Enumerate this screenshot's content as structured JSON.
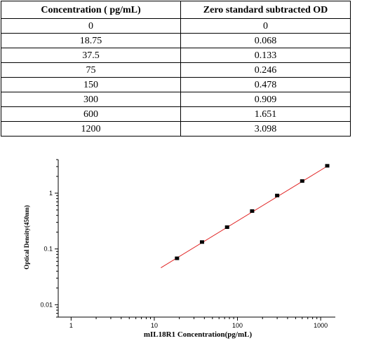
{
  "table": {
    "headers": [
      "Concentration ( pg/mL)",
      "Zero standard subtracted OD"
    ],
    "rows": [
      [
        "0",
        "0"
      ],
      [
        "18.75",
        "0.068"
      ],
      [
        "37.5",
        "0.133"
      ],
      [
        "75",
        "0.246"
      ],
      [
        "150",
        "0.478"
      ],
      [
        "300",
        "0.909"
      ],
      [
        "600",
        "1.651"
      ],
      [
        "1200",
        "3.098"
      ]
    ]
  },
  "chart_data": {
    "type": "scatter",
    "xscale": "log",
    "yscale": "log",
    "xlabel": "mIL18R1 Concentration(pg/mL)",
    "ylabel": "Optical Density(450nm)",
    "xlim": [
      0.7,
      1500
    ],
    "ylim": [
      0.006,
      4
    ],
    "xticks": [
      "1",
      "10",
      "100",
      "1000"
    ],
    "yticks": [
      "0.01",
      "0.1",
      "1"
    ],
    "grid": false,
    "series": [
      {
        "x": [
          18.75,
          37.5,
          75,
          150,
          300,
          600,
          1200
        ],
        "y": [
          0.068,
          0.133,
          0.246,
          0.478,
          0.909,
          1.651,
          3.098
        ],
        "marker_color": "#000000"
      }
    ],
    "fit_line": {
      "x": [
        12,
        1200
      ],
      "y": [
        0.046,
        3.05
      ],
      "color": "#e02020"
    }
  }
}
